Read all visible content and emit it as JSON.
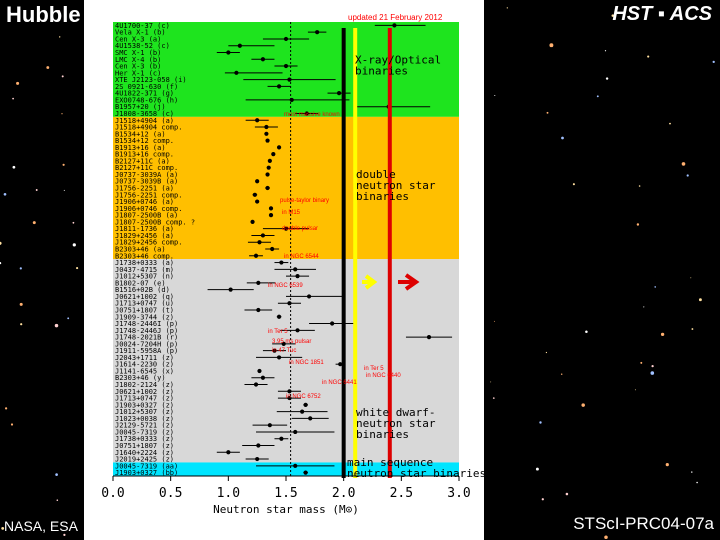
{
  "header": {
    "left_title": "Hubble",
    "right_title": "HST ▪ ACS"
  },
  "footer": {
    "left_credit": "NASA, ESA",
    "right_credit": "STScI-PRC04-07a"
  },
  "colors": {
    "xray_region": "#1ee41e",
    "double_ns_region": "#ffbf00",
    "wd_region": "#d8d8d8",
    "ms_region": "#00e5ff",
    "black_line": "#000000",
    "yellow_line": "#ffff00",
    "red_line": "#dd0000",
    "annotation": "#ff0000"
  },
  "chart_data": {
    "type": "scatter",
    "title": "",
    "xlabel": "Neutron star mass (M⊙)",
    "xlim": [
      0.0,
      3.0
    ],
    "x_ticks": [
      "0.0",
      "0.5",
      "1.0",
      "1.5",
      "2.0",
      "2.5",
      "3.0"
    ],
    "updated_note": "updated 21 February 2012",
    "regions": [
      {
        "label": "X-ray/Optical binaries",
        "lines": [
          "X-ray/Optical",
          "binaries"
        ],
        "rows": [
          {
            "name": "4U1700-37 (c)",
            "x": 2.44,
            "lo": 0.17,
            "hi": 0.27
          },
          {
            "name": "Vela X-1 (b)",
            "x": 1.77,
            "lo": 0.08,
            "hi": 0.08
          },
          {
            "name": "Cen X-3 (a)",
            "x": 1.5,
            "lo": 0.2,
            "hi": 0.2
          },
          {
            "name": "4U1538-52 (c)",
            "x": 1.1,
            "lo": 0.1,
            "hi": 0.3
          },
          {
            "name": "SMC X-1 (b)",
            "x": 1.0,
            "lo": 0.1,
            "hi": 0.1
          },
          {
            "name": "LMC X-4 (b)",
            "x": 1.3,
            "lo": 0.1,
            "hi": 0.1
          },
          {
            "name": "Cen X-3 (b)",
            "x": 1.5,
            "lo": 0.1,
            "hi": 0.1
          },
          {
            "name": "Her X-1 (c)",
            "x": 1.07,
            "lo": 0.1,
            "hi": 0.4
          },
          {
            "name": "XTE J2123-058 (i)",
            "x": 1.53,
            "lo": 0.4,
            "hi": 0.4
          },
          {
            "name": "2S 0921-630 (f)",
            "x": 1.44,
            "lo": 0.1,
            "hi": 0.1
          },
          {
            "name": "4U1822-371 (g)",
            "x": 1.96,
            "lo": 0.1,
            "hi": 0.1
          },
          {
            "name": "EXO0748-676 (h)",
            "x": 1.55,
            "lo": 0.4,
            "hi": 0.5
          },
          {
            "name": "B1957+20 (j)",
            "x": 2.39,
            "lo": 0.29,
            "hi": 0.36
          },
          {
            "name": "J1808-3658 (c)",
            "x": 1.68,
            "lo": 0.1,
            "hi": 0.1
          }
        ]
      },
      {
        "label": "double neutron star binaries",
        "lines": [
          "double",
          "neutron star",
          "binaries"
        ],
        "rows": [
          {
            "name": "J1518+4904 (a)",
            "x": 1.25,
            "lo": 0.1,
            "hi": 0.1
          },
          {
            "name": "J1518+4904 comp.",
            "x": 1.33,
            "lo": 0.1,
            "hi": 0.1
          },
          {
            "name": "B1534+12 (a)",
            "x": 1.33,
            "lo": 0.01,
            "hi": 0.01
          },
          {
            "name": "B1534+12 comp.",
            "x": 1.34,
            "lo": 0.01,
            "hi": 0.01
          },
          {
            "name": "B1913+16 (a)",
            "x": 1.44,
            "lo": 0.01,
            "hi": 0.01
          },
          {
            "name": "B1913+16 comp.",
            "x": 1.39,
            "lo": 0.01,
            "hi": 0.01
          },
          {
            "name": "B2127+11C (a)",
            "x": 1.36,
            "lo": 0.01,
            "hi": 0.01
          },
          {
            "name": "B2127+11C comp.",
            "x": 1.35,
            "lo": 0.01,
            "hi": 0.01
          },
          {
            "name": "J0737-3039A (a)",
            "x": 1.34,
            "lo": 0.01,
            "hi": 0.01
          },
          {
            "name": "J0737-3039B (a)",
            "x": 1.25,
            "lo": 0.01,
            "hi": 0.01
          },
          {
            "name": "J1756-2251 (a)",
            "x": 1.34,
            "lo": 0.02,
            "hi": 0.02
          },
          {
            "name": "J1756-2251 comp.",
            "x": 1.23,
            "lo": 0.02,
            "hi": 0.02
          },
          {
            "name": "J1906+0746 (a)",
            "x": 1.25,
            "lo": 0.01,
            "hi": 0.01
          },
          {
            "name": "J1906+0746 comp.",
            "x": 1.37,
            "lo": 0.01,
            "hi": 0.01
          },
          {
            "name": "J1807-2500B (a)",
            "x": 1.37,
            "lo": 0.01,
            "hi": 0.01
          },
          {
            "name": "J1807-2500B comp. ?",
            "x": 1.21,
            "lo": 0.01,
            "hi": 0.01
          },
          {
            "name": "J1811-1736 (a)",
            "x": 1.5,
            "lo": 0.2,
            "hi": 0.2
          },
          {
            "name": "J1829+2456 (a)",
            "x": 1.3,
            "lo": 0.1,
            "hi": 0.1
          },
          {
            "name": "J1829+2456 comp.",
            "x": 1.27,
            "lo": 0.1,
            "hi": 0.1
          },
          {
            "name": "B2303+46 (a)",
            "x": 1.38,
            "lo": 0.06,
            "hi": 0.06
          },
          {
            "name": "B2303+46 comp.",
            "x": 1.24,
            "lo": 0.06,
            "hi": 0.06
          }
        ]
      },
      {
        "label": "white dwarf-neutron star binaries",
        "lines": [
          "white dwarf-",
          "neutron star",
          "binaries"
        ],
        "rows": [
          {
            "name": "J1738+0333 (a)",
            "x": 1.46,
            "lo": 0.06,
            "hi": 0.06
          },
          {
            "name": "J0437-4715 (m)",
            "x": 1.58,
            "lo": 0.18,
            "hi": 0.18
          },
          {
            "name": "J1012+5307 (n)",
            "x": 1.6,
            "lo": 0.1,
            "hi": 0.1
          },
          {
            "name": "B1802-07 (e)",
            "x": 1.26,
            "lo": 0.1,
            "hi": 0.15
          },
          {
            "name": "B1516+02B (d)",
            "x": 1.02,
            "lo": 0.2,
            "hi": 0.2
          },
          {
            "name": "J0621+1002 (q)",
            "x": 1.7,
            "lo": 0.2,
            "hi": 0.3
          },
          {
            "name": "J1713+0747 (u)",
            "x": 1.53,
            "lo": 0.1,
            "hi": 0.1
          },
          {
            "name": "J0751+1807 (t)",
            "x": 1.26,
            "lo": 0.12,
            "hi": 0.12
          },
          {
            "name": "J1909-3744 (z)",
            "x": 1.44,
            "lo": 0.02,
            "hi": 0.02
          },
          {
            "name": "J1748-2446I (p)",
            "x": 1.9,
            "lo": 0.2,
            "hi": 0.2
          },
          {
            "name": "J1748-2446J (p)",
            "x": 1.6,
            "lo": 0.15,
            "hi": 0.15
          },
          {
            "name": "J1748-2021B (r)",
            "x": 2.74,
            "lo": 0.2,
            "hi": 0.2
          },
          {
            "name": "J0024-7204H (p)",
            "x": 1.48,
            "lo": 0.1,
            "hi": 0.1
          },
          {
            "name": "J1911-5958A (p)",
            "x": 1.4,
            "lo": 0.1,
            "hi": 0.1
          },
          {
            "name": "J2043+1711 (z)",
            "x": 1.44,
            "lo": 0.2,
            "hi": 0.2
          },
          {
            "name": "J1614-2230 (z)",
            "x": 1.97,
            "lo": 0.04,
            "hi": 0.04
          },
          {
            "name": "J1141-6545 (x)",
            "x": 1.27,
            "lo": 0.01,
            "hi": 0.01
          },
          {
            "name": "B2303+46 (y)",
            "x": 1.3,
            "lo": 0.1,
            "hi": 0.1
          },
          {
            "name": "J1802-2124 (z)",
            "x": 1.24,
            "lo": 0.1,
            "hi": 0.1
          },
          {
            "name": "J0621+1002 (z)",
            "x": 1.53,
            "lo": 0.1,
            "hi": 0.1
          },
          {
            "name": "J1713+0747 (z)",
            "x": 1.53,
            "lo": 0.1,
            "hi": 0.1
          },
          {
            "name": "J1903+0327 (z)",
            "x": 1.67,
            "lo": 0.02,
            "hi": 0.02
          },
          {
            "name": "J1012+5307 (z)",
            "x": 1.64,
            "lo": 0.22,
            "hi": 0.22
          },
          {
            "name": "J1023+0038 (z)",
            "x": 1.71,
            "lo": 0.16,
            "hi": 0.16
          },
          {
            "name": "J2129-5721 (z)",
            "x": 1.36,
            "lo": 0.15,
            "hi": 0.15
          },
          {
            "name": "J0045-7319 (z)",
            "x": 1.58,
            "lo": 0.34,
            "hi": 0.34
          },
          {
            "name": "J1738+0333 (z)",
            "x": 1.46,
            "lo": 0.06,
            "hi": 0.06
          },
          {
            "name": "J0751+1807 (z)",
            "x": 1.26,
            "lo": 0.14,
            "hi": 0.14
          },
          {
            "name": "J1640+2224 (z)",
            "x": 1.0,
            "lo": 0.1,
            "hi": 0.1
          },
          {
            "name": "J2019+2425 (z)",
            "x": 1.25,
            "lo": 0.1,
            "hi": 0.1
          }
        ]
      },
      {
        "label": "main sequence-neutron star binaries",
        "lines": [
          "main sequence",
          "neutron star binaries"
        ],
        "rows": [
          {
            "name": "J0045-7319 (aa)",
            "x": 1.58,
            "lo": 0.34,
            "hi": 0.34
          },
          {
            "name": "J1903+0327 (bb)",
            "x": 1.67,
            "lo": 0.02,
            "hi": 0.02
          }
        ]
      }
    ],
    "vlines": [
      {
        "x": 2.0,
        "color": "#000000"
      },
      {
        "x": 2.1,
        "color": "#ffff00"
      },
      {
        "x": 2.4,
        "color": "#dd0000"
      }
    ],
    "dotted_line_x": 1.54,
    "annotations": [
      "pulse-taylor binary",
      "in M15",
      "double pulsar",
      "in NGC 6544",
      "in NGC 6539",
      "in Ter 5",
      "3.95 ms pulsar",
      "in 47 Tuc",
      "in NGC 1851",
      "in Ter 5",
      "in NGC 6440",
      "in NGC 6441",
      "in NGC 6752",
      "most massive known"
    ]
  }
}
